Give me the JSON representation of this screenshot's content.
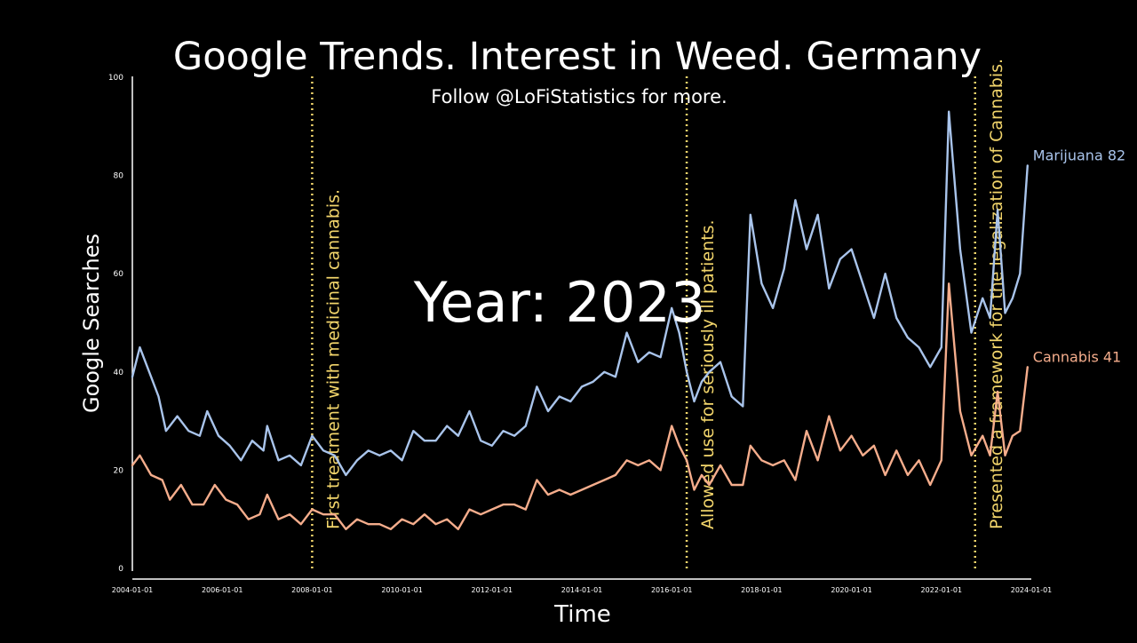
{
  "colors": {
    "background": "#000000",
    "marijuana": "#a9c4eb",
    "cannabis": "#f5ad8c",
    "annotation": "#f2d56b",
    "axis": "#ffffff"
  },
  "chart_data": {
    "type": "line",
    "title": "Google Trends. Interest in Weed. Germany",
    "subtitle": "Follow @LoFiStatistics for more.",
    "overlay_text": "Year: 2023",
    "xlabel": "Time",
    "ylabel": "Google Searches",
    "xlim": [
      "2004-01-01",
      "2024-01-01"
    ],
    "ylim": [
      0,
      100
    ],
    "x_ticks": [
      "2004-01-01",
      "2006-01-01",
      "2008-01-01",
      "2010-01-01",
      "2012-01-01",
      "2014-01-01",
      "2016-01-01",
      "2018-01-01",
      "2020-01-01",
      "2022-01-01",
      "2024-01-01"
    ],
    "y_ticks": [
      0,
      20,
      40,
      60,
      80,
      100
    ],
    "grid": false,
    "legend": "end-of-line labels",
    "annotations": [
      {
        "date": "2008-01-01",
        "text": "First treatment with medicinal cannabis."
      },
      {
        "date": "2016-05-01",
        "text": "Allowed use for seriously ill patients."
      },
      {
        "date": "2022-10-01",
        "text": "Presented a framework for the legalization of Cannabis."
      }
    ],
    "series": [
      {
        "name": "Marijuana",
        "end_label": "Marijuana 82",
        "points": [
          [
            "2004-01",
            39
          ],
          [
            "2004-03",
            45
          ],
          [
            "2004-06",
            39
          ],
          [
            "2004-08",
            35
          ],
          [
            "2004-10",
            28
          ],
          [
            "2005-01",
            31
          ],
          [
            "2005-04",
            28
          ],
          [
            "2005-07",
            27
          ],
          [
            "2005-09",
            32
          ],
          [
            "2005-12",
            27
          ],
          [
            "2006-03",
            25
          ],
          [
            "2006-06",
            22
          ],
          [
            "2006-09",
            26
          ],
          [
            "2006-12",
            24
          ],
          [
            "2007-01",
            29
          ],
          [
            "2007-04",
            22
          ],
          [
            "2007-07",
            23
          ],
          [
            "2007-10",
            21
          ],
          [
            "2008-01",
            27
          ],
          [
            "2008-04",
            24
          ],
          [
            "2008-07",
            23
          ],
          [
            "2008-10",
            19
          ],
          [
            "2009-01",
            22
          ],
          [
            "2009-04",
            24
          ],
          [
            "2009-07",
            23
          ],
          [
            "2009-10",
            24
          ],
          [
            "2010-01",
            22
          ],
          [
            "2010-04",
            28
          ],
          [
            "2010-07",
            26
          ],
          [
            "2010-10",
            26
          ],
          [
            "2011-01",
            29
          ],
          [
            "2011-04",
            27
          ],
          [
            "2011-07",
            32
          ],
          [
            "2011-10",
            26
          ],
          [
            "2012-01",
            25
          ],
          [
            "2012-04",
            28
          ],
          [
            "2012-07",
            27
          ],
          [
            "2012-10",
            29
          ],
          [
            "2013-01",
            37
          ],
          [
            "2013-04",
            32
          ],
          [
            "2013-07",
            35
          ],
          [
            "2013-10",
            34
          ],
          [
            "2014-01",
            37
          ],
          [
            "2014-04",
            38
          ],
          [
            "2014-07",
            40
          ],
          [
            "2014-10",
            39
          ],
          [
            "2015-01",
            48
          ],
          [
            "2015-04",
            42
          ],
          [
            "2015-07",
            44
          ],
          [
            "2015-10",
            43
          ],
          [
            "2016-01",
            53
          ],
          [
            "2016-03",
            48
          ],
          [
            "2016-05",
            40
          ],
          [
            "2016-07",
            34
          ],
          [
            "2016-09",
            38
          ],
          [
            "2016-11",
            40
          ],
          [
            "2017-02",
            42
          ],
          [
            "2017-05",
            35
          ],
          [
            "2017-08",
            33
          ],
          [
            "2017-10",
            72
          ],
          [
            "2018-01",
            58
          ],
          [
            "2018-04",
            53
          ],
          [
            "2018-07",
            61
          ],
          [
            "2018-10",
            75
          ],
          [
            "2019-01",
            65
          ],
          [
            "2019-04",
            72
          ],
          [
            "2019-07",
            57
          ],
          [
            "2019-10",
            63
          ],
          [
            "2020-01",
            65
          ],
          [
            "2020-04",
            58
          ],
          [
            "2020-07",
            51
          ],
          [
            "2020-10",
            60
          ],
          [
            "2021-01",
            51
          ],
          [
            "2021-04",
            47
          ],
          [
            "2021-07",
            45
          ],
          [
            "2021-10",
            41
          ],
          [
            "2022-01",
            45
          ],
          [
            "2022-03",
            93
          ],
          [
            "2022-06",
            65
          ],
          [
            "2022-09",
            48
          ],
          [
            "2022-12",
            55
          ],
          [
            "2023-02",
            51
          ],
          [
            "2023-04",
            73
          ],
          [
            "2023-06",
            52
          ],
          [
            "2023-08",
            55
          ],
          [
            "2023-10",
            60
          ],
          [
            "2023-12",
            82
          ]
        ]
      },
      {
        "name": "Cannabis",
        "end_label": "Cannabis 41",
        "points": [
          [
            "2004-01",
            21
          ],
          [
            "2004-03",
            23
          ],
          [
            "2004-06",
            19
          ],
          [
            "2004-09",
            18
          ],
          [
            "2004-11",
            14
          ],
          [
            "2005-02",
            17
          ],
          [
            "2005-05",
            13
          ],
          [
            "2005-08",
            13
          ],
          [
            "2005-11",
            17
          ],
          [
            "2006-02",
            14
          ],
          [
            "2006-05",
            13
          ],
          [
            "2006-08",
            10
          ],
          [
            "2006-11",
            11
          ],
          [
            "2007-01",
            15
          ],
          [
            "2007-04",
            10
          ],
          [
            "2007-07",
            11
          ],
          [
            "2007-10",
            9
          ],
          [
            "2008-01",
            12
          ],
          [
            "2008-04",
            11
          ],
          [
            "2008-07",
            11
          ],
          [
            "2008-10",
            8
          ],
          [
            "2009-01",
            10
          ],
          [
            "2009-04",
            9
          ],
          [
            "2009-07",
            9
          ],
          [
            "2009-10",
            8
          ],
          [
            "2010-01",
            10
          ],
          [
            "2010-04",
            9
          ],
          [
            "2010-07",
            11
          ],
          [
            "2010-10",
            9
          ],
          [
            "2011-01",
            10
          ],
          [
            "2011-04",
            8
          ],
          [
            "2011-07",
            12
          ],
          [
            "2011-10",
            11
          ],
          [
            "2012-01",
            12
          ],
          [
            "2012-04",
            13
          ],
          [
            "2012-07",
            13
          ],
          [
            "2012-10",
            12
          ],
          [
            "2013-01",
            18
          ],
          [
            "2013-04",
            15
          ],
          [
            "2013-07",
            16
          ],
          [
            "2013-10",
            15
          ],
          [
            "2014-01",
            16
          ],
          [
            "2014-04",
            17
          ],
          [
            "2014-07",
            18
          ],
          [
            "2014-10",
            19
          ],
          [
            "2015-01",
            22
          ],
          [
            "2015-04",
            21
          ],
          [
            "2015-07",
            22
          ],
          [
            "2015-10",
            20
          ],
          [
            "2016-01",
            29
          ],
          [
            "2016-03",
            25
          ],
          [
            "2016-05",
            22
          ],
          [
            "2016-07",
            16
          ],
          [
            "2016-09",
            19
          ],
          [
            "2016-11",
            17
          ],
          [
            "2017-02",
            21
          ],
          [
            "2017-05",
            17
          ],
          [
            "2017-08",
            17
          ],
          [
            "2017-10",
            25
          ],
          [
            "2018-01",
            22
          ],
          [
            "2018-04",
            21
          ],
          [
            "2018-07",
            22
          ],
          [
            "2018-10",
            18
          ],
          [
            "2019-01",
            28
          ],
          [
            "2019-04",
            22
          ],
          [
            "2019-07",
            31
          ],
          [
            "2019-10",
            24
          ],
          [
            "2020-01",
            27
          ],
          [
            "2020-04",
            23
          ],
          [
            "2020-07",
            25
          ],
          [
            "2020-10",
            19
          ],
          [
            "2021-01",
            24
          ],
          [
            "2021-04",
            19
          ],
          [
            "2021-07",
            22
          ],
          [
            "2021-10",
            17
          ],
          [
            "2022-01",
            22
          ],
          [
            "2022-03",
            58
          ],
          [
            "2022-06",
            32
          ],
          [
            "2022-09",
            23
          ],
          [
            "2022-12",
            27
          ],
          [
            "2023-02",
            23
          ],
          [
            "2023-04",
            36
          ],
          [
            "2023-06",
            23
          ],
          [
            "2023-08",
            27
          ],
          [
            "2023-10",
            28
          ],
          [
            "2023-12",
            41
          ]
        ]
      }
    ]
  }
}
